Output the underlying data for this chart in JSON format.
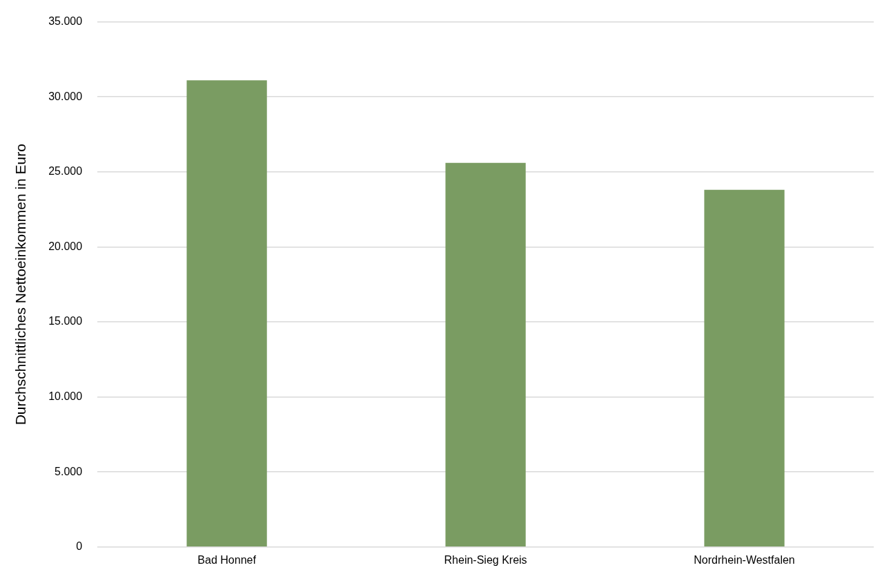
{
  "chart_data": {
    "type": "bar",
    "ylabel": "Durchschnittliches Nettoeinkommen in Euro",
    "categories": [
      "Bad Honnef",
      "Rhein-Sieg Kreis",
      "Nordrhein-Westfalen"
    ],
    "values": [
      31100,
      25600,
      23800
    ],
    "color": "#7a9c62",
    "ylim": [
      0,
      35000
    ],
    "yticks": [
      {
        "value": 0,
        "label": "0"
      },
      {
        "value": 5000,
        "label": "5.000"
      },
      {
        "value": 10000,
        "label": "10.000"
      },
      {
        "value": 15000,
        "label": "15.000"
      },
      {
        "value": 20000,
        "label": "20.000"
      },
      {
        "value": 25000,
        "label": "25.000"
      },
      {
        "value": 30000,
        "label": "30.000"
      },
      {
        "value": 35000,
        "label": "35.000"
      }
    ],
    "grid": "y",
    "legend": false
  }
}
